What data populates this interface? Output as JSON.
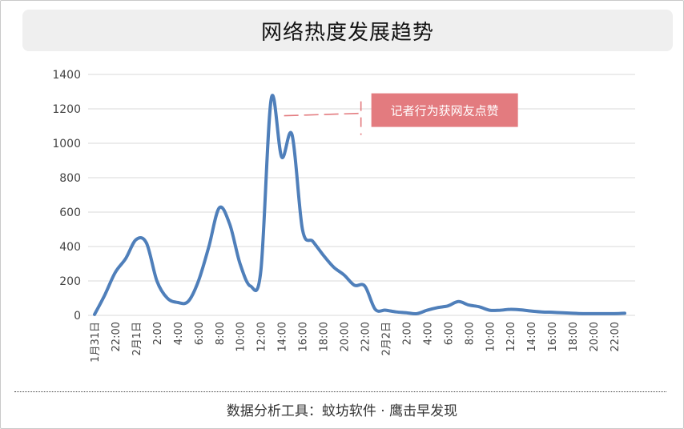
{
  "header": {
    "title": "网络热度发展趋势"
  },
  "footer": {
    "source": "数据分析工具：蚊坊软件 · 鹰击早发现"
  },
  "chart_data": {
    "type": "line",
    "series_color": "#4f7fba",
    "annotation_color": "#e37b7f",
    "x_tick_labels": [
      "1月31日",
      "22:00",
      "2月1日",
      "2:00",
      "4:00",
      "6:00",
      "8:00",
      "10:00",
      "12:00",
      "14:00",
      "16:00",
      "18:00",
      "20:00",
      "22:00",
      "2月2日",
      "2:00",
      "4:00",
      "6:00",
      "8:00",
      "10:00",
      "12:00",
      "14:00",
      "16:00",
      "18:00",
      "20:00",
      "22:00"
    ],
    "ylim": [
      0,
      1400
    ],
    "y_ticks": [
      0,
      200,
      400,
      600,
      800,
      1000,
      1200,
      1400
    ],
    "grid": true,
    "series": [
      {
        "x": [
          0,
          0.5,
          1,
          1.5,
          2,
          2.5,
          3,
          3.5,
          4,
          4.5,
          5,
          5.5,
          6,
          6.5,
          7,
          7.5,
          8,
          8.5,
          9,
          9.5,
          10,
          10.5,
          11,
          11.5,
          12,
          12.5,
          13,
          13.5,
          14,
          14.5,
          15,
          15.5,
          16,
          16.5,
          17,
          17.5,
          18,
          18.5,
          19,
          19.5,
          20,
          20.5,
          21,
          21.5,
          22,
          22.5,
          23,
          23.5,
          24,
          24.5,
          25,
          25.5
        ],
        "values": [
          5,
          120,
          250,
          330,
          440,
          420,
          200,
          100,
          75,
          80,
          200,
          400,
          625,
          530,
          300,
          170,
          260,
          1260,
          920,
          1050,
          500,
          430,
          350,
          280,
          235,
          175,
          170,
          35,
          30,
          20,
          15,
          10,
          30,
          45,
          55,
          80,
          60,
          50,
          30,
          30,
          35,
          32,
          25,
          20,
          18,
          15,
          12,
          10,
          10,
          10,
          10,
          12
        ]
      }
    ],
    "annotations": [
      {
        "text": "记者行为获网友点赞",
        "x": 9,
        "y": 1160
      }
    ]
  }
}
